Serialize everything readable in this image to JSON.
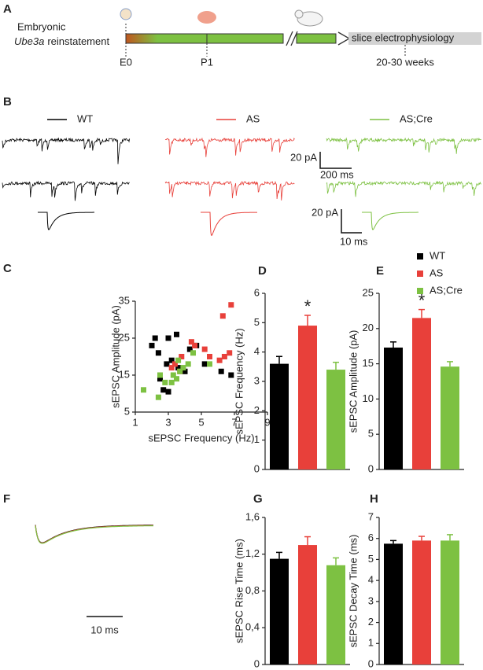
{
  "panel_labels": [
    "A",
    "B",
    "C",
    "D",
    "E",
    "F",
    "G",
    "H"
  ],
  "timeline": {
    "label_line1": "Embryonic",
    "label_gene": "Ube3a",
    "label_rest": "reinstatement",
    "endpoint": "slice electrophysiology",
    "timepoints": [
      "E0",
      "P1",
      "20-30 weeks"
    ]
  },
  "traces": {
    "groups": [
      {
        "name": "WT",
        "color": "#000000"
      },
      {
        "name": "AS",
        "color": "#e8403a"
      },
      {
        "name": "AS;Cre",
        "color": "#7dc142"
      }
    ],
    "scale_bars": [
      "20 pA",
      "200 ms",
      "20 pA",
      "10 ms"
    ],
    "overlay_scale_bar": "10 ms"
  },
  "chart_data": [
    {
      "type": "scatter",
      "xlabel": "sEPSC Frequency (Hz)",
      "ylabel": "sEPSC Amplitude (pA)",
      "xlim": [
        1,
        9
      ],
      "ylim": [
        5,
        35
      ],
      "xticks": [
        1,
        3,
        5,
        7,
        9
      ],
      "yticks": [
        5,
        15,
        25,
        35
      ],
      "legend": "upper right",
      "series": [
        {
          "name": "WT",
          "color": "#000000",
          "x": [
            2.2,
            2.0,
            2.5,
            2.7,
            3.0,
            2.9,
            3.2,
            3.5,
            3.6,
            4.0,
            4.3,
            4.7,
            5.2,
            6.2,
            6.8,
            2.4,
            3.0
          ],
          "y": [
            25,
            23,
            14,
            11,
            10.5,
            18,
            19,
            26,
            17,
            16,
            22,
            23,
            18,
            16,
            15,
            21,
            25
          ]
        },
        {
          "name": "AS",
          "color": "#e8403a",
          "x": [
            3.4,
            3.8,
            3.2,
            4.4,
            5.2,
            5.5,
            6.1,
            6.4,
            6.7,
            6.3,
            6.8,
            4.6,
            3.7
          ],
          "y": [
            18,
            20,
            17,
            24,
            22,
            20,
            19,
            20,
            21,
            31,
            34,
            23,
            16
          ]
        },
        {
          "name": "AS;Cre",
          "color": "#7dc142",
          "x": [
            1.5,
            2.5,
            2.8,
            3.2,
            3.3,
            3.5,
            3.7,
            3.9,
            4.2,
            2.4,
            5.5,
            4.5,
            3.6
          ],
          "y": [
            11,
            15,
            13,
            13,
            15,
            14,
            16,
            17,
            18,
            9,
            18,
            21,
            19
          ]
        }
      ]
    },
    {
      "type": "bar",
      "ylabel": "sEPSC Frequency (Hz)",
      "ylim": [
        0,
        6
      ],
      "yticks": [
        0,
        1,
        2,
        3,
        4,
        5,
        6
      ],
      "values": [
        3.6,
        4.9,
        3.4
      ],
      "errors": [
        0.25,
        0.35,
        0.25
      ],
      "colors": [
        "#000000",
        "#e8403a",
        "#7dc142"
      ],
      "significance": [
        null,
        "*",
        null
      ]
    },
    {
      "type": "bar",
      "ylabel": "sEPSC Amplitude (pA)",
      "ylim": [
        0,
        25
      ],
      "yticks": [
        0,
        5,
        10,
        15,
        20,
        25
      ],
      "values": [
        17.3,
        21.5,
        14.6
      ],
      "errors": [
        0.8,
        1.2,
        0.7
      ],
      "colors": [
        "#000000",
        "#e8403a",
        "#7dc142"
      ],
      "significance": [
        null,
        "*",
        null
      ]
    },
    {
      "type": "bar",
      "ylabel": "sEPSC Rise Time (ms)",
      "ylim": [
        0,
        1.6
      ],
      "yticks": [
        0,
        {
          "value": 0.4,
          "label": "0,4"
        },
        {
          "value": 0.8,
          "label": "0,8"
        },
        {
          "value": 1.2,
          "label": "1,2"
        },
        {
          "value": 1.6,
          "label": "1,6"
        }
      ],
      "values": [
        1.15,
        1.3,
        1.08
      ],
      "errors": [
        0.07,
        0.09,
        0.08
      ],
      "colors": [
        "#000000",
        "#e8403a",
        "#7dc142"
      ]
    },
    {
      "type": "bar",
      "ylabel": "sEPSC  Decay Time (ms)",
      "ylim": [
        0,
        7
      ],
      "yticks": [
        0,
        1,
        2,
        3,
        4,
        5,
        6,
        7
      ],
      "values": [
        5.75,
        5.9,
        5.9
      ],
      "errors": [
        0.15,
        0.2,
        0.28
      ],
      "colors": [
        "#000000",
        "#e8403a",
        "#7dc142"
      ]
    }
  ]
}
